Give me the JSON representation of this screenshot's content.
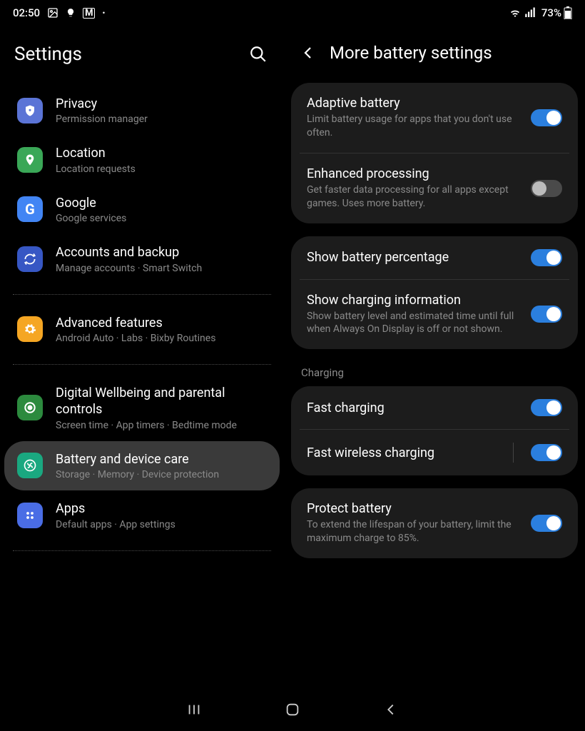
{
  "status": {
    "time": "02:50",
    "battery_pct": "73%"
  },
  "left": {
    "title": "Settings",
    "items": [
      {
        "title": "Privacy",
        "sub": "Permission manager",
        "icon_bg": "#5b74d6",
        "icon": "shield"
      },
      {
        "title": "Location",
        "sub": "Location requests",
        "icon_bg": "#3aa757",
        "icon": "pin"
      },
      {
        "title": "Google",
        "sub": "Google services",
        "icon_bg": "#4285f4",
        "icon": "G"
      },
      {
        "title": "Accounts and backup",
        "sub": "Manage accounts  ·  Smart Switch",
        "icon_bg": "#3757c4",
        "icon": "sync"
      }
    ],
    "items2": [
      {
        "title": "Advanced features",
        "sub": "Android Auto  ·  Labs  ·  Bixby Routines",
        "icon_bg": "#f5a623",
        "icon": "gear"
      }
    ],
    "items3": [
      {
        "title": "Digital Wellbeing and parental controls",
        "sub": "Screen time  ·  App timers  ·  Bedtime mode",
        "icon_bg": "#2c8a3e",
        "icon": "ring"
      },
      {
        "title": "Battery and device care",
        "sub": "Storage  ·  Memory  ·  Device protection",
        "icon_bg": "#1aa880",
        "icon": "care",
        "selected": true
      },
      {
        "title": "Apps",
        "sub": "Default apps  ·  App settings",
        "icon_bg": "#4a6de5",
        "icon": "dots"
      }
    ]
  },
  "right": {
    "title": "More battery settings",
    "group1": [
      {
        "title": "Adaptive battery",
        "desc": "Limit battery usage for apps that you don't use often.",
        "on": true
      },
      {
        "title": "Enhanced processing",
        "desc": "Get faster data processing for all apps except games. Uses more battery.",
        "on": false
      }
    ],
    "group2": [
      {
        "title": "Show battery percentage",
        "desc": "",
        "on": true
      },
      {
        "title": "Show charging information",
        "desc": "Show battery level and estimated time until full when Always On Display is off or not shown.",
        "on": true
      }
    ],
    "charging_label": "Charging",
    "group3": [
      {
        "title": "Fast charging",
        "desc": "",
        "on": true
      },
      {
        "title": "Fast wireless charging",
        "desc": "",
        "on": true,
        "sep": true
      }
    ],
    "group4": [
      {
        "title": "Protect battery",
        "desc": "To extend the lifespan of your battery, limit the maximum charge to 85%.",
        "on": true
      }
    ]
  },
  "colors": {
    "toggle_on": "#2b7fde"
  }
}
